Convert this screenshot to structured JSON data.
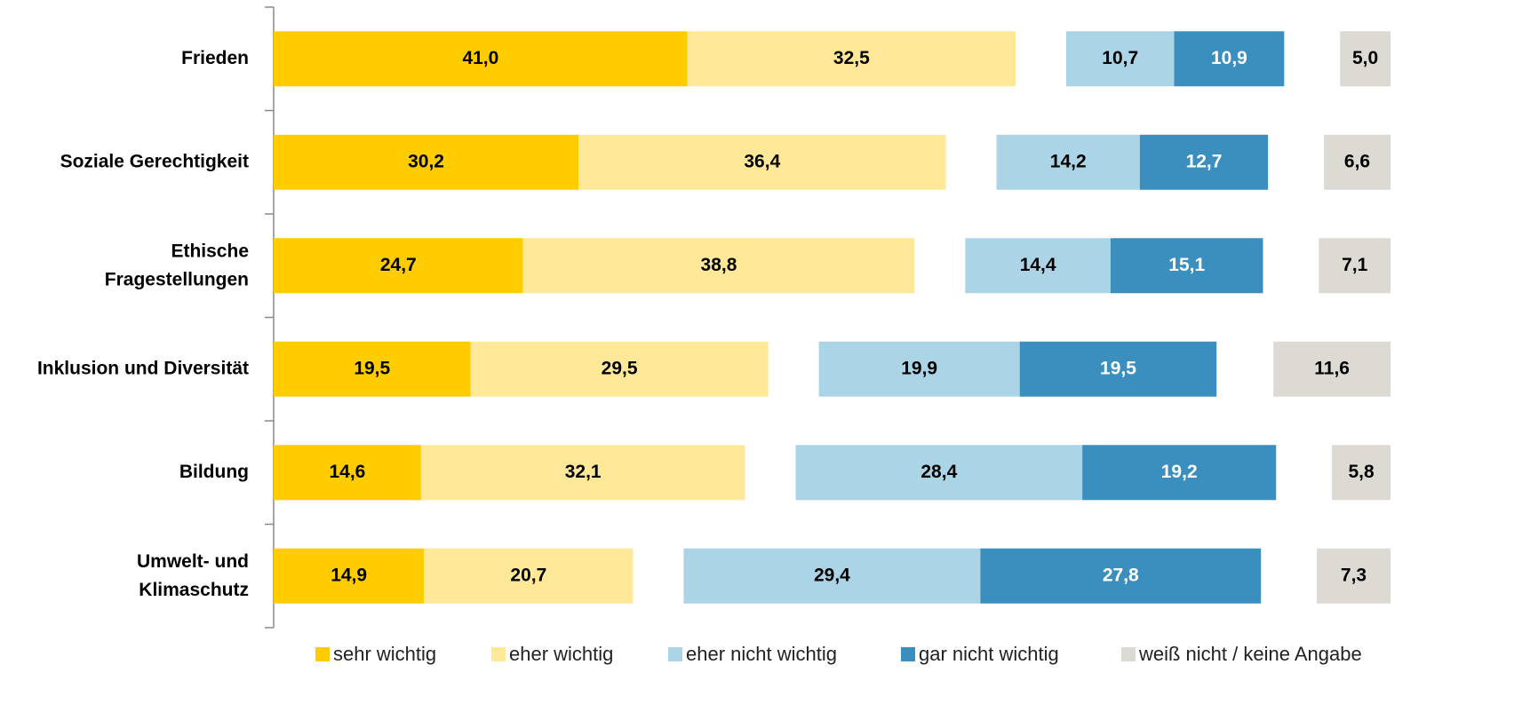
{
  "chart_data": {
    "type": "bar",
    "categories": [
      "Frieden",
      "Soziale Gerechtigkeit",
      "Ethische\nFragestellungen",
      "Inklusion und Diversität",
      "Bildung",
      "Umwelt- und\nKlimaschutz"
    ],
    "series": [
      {
        "name": "sehr wichtig",
        "color": "#FFCC00",
        "values": [
          41.0,
          30.2,
          24.7,
          19.5,
          14.6,
          14.9
        ],
        "value_labels": [
          "41,0",
          "30,2",
          "24,7",
          "19,5",
          "14,6",
          "14,9"
        ]
      },
      {
        "name": "eher wichtig",
        "color": "#FFE999",
        "values": [
          32.5,
          36.4,
          38.8,
          29.5,
          32.1,
          20.7
        ],
        "value_labels": [
          "32,5",
          "36,4",
          "38,8",
          "29,5",
          "32,1",
          "20,7"
        ]
      },
      {
        "name": "eher nicht wichtig",
        "color": "#ABD4E6",
        "values": [
          10.7,
          14.2,
          14.4,
          19.9,
          28.4,
          29.4
        ],
        "value_labels": [
          "10,7",
          "14,2",
          "14,4",
          "19,9",
          "28,4",
          "29,4"
        ]
      },
      {
        "name": "gar nicht wichtig",
        "color": "#3A8FBF",
        "values": [
          10.9,
          12.7,
          15.1,
          19.5,
          19.2,
          27.8
        ],
        "value_labels": [
          "10,9",
          "12,7",
          "15,1",
          "19,5",
          "19,2",
          "27,8"
        ]
      },
      {
        "name": "weiß nicht / keine Angabe",
        "color": "#DDD9D3",
        "values": [
          5.0,
          6.6,
          7.1,
          11.6,
          5.8,
          7.3
        ],
        "value_labels": [
          "5,0",
          "6,6",
          "7,1",
          "11,6",
          "5,8",
          "7,3"
        ]
      }
    ]
  }
}
